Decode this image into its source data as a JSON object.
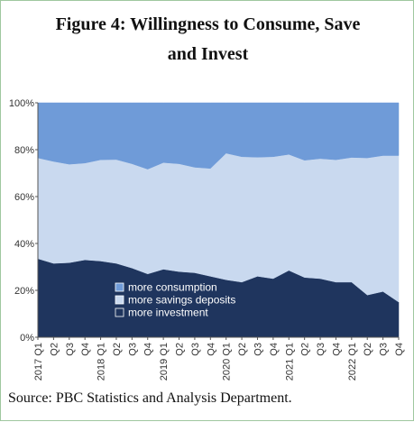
{
  "chart_data": {
    "type": "area",
    "stacked": true,
    "normalized": true,
    "title": "Figure 4: Willingness to Consume, Save\nand Invest",
    "xlabel": "",
    "ylabel": "",
    "ylim": [
      0,
      100
    ],
    "y_ticks": [
      "0%",
      "20%",
      "40%",
      "60%",
      "80%",
      "100%"
    ],
    "categories": [
      "2017 Q1",
      "Q2",
      "Q3",
      "Q4",
      "2018 Q1",
      "Q2",
      "Q3",
      "Q4",
      "2019 Q1",
      "Q2",
      "Q3",
      "Q4",
      "2020 Q1",
      "Q2",
      "Q3",
      "Q4",
      "2021 Q1",
      "Q2",
      "Q3",
      "Q4",
      "2022 Q1",
      "Q2",
      "Q3",
      "Q4"
    ],
    "series": [
      {
        "name": "more investment",
        "color": "#1f355e",
        "values": [
          33.5,
          31.5,
          31.8,
          33.0,
          32.5,
          31.5,
          29.5,
          27.0,
          29.0,
          28.0,
          27.5,
          26.0,
          24.5,
          23.5,
          26.0,
          25.0,
          28.5,
          25.5,
          25.0,
          23.5,
          23.5,
          18.0,
          19.5,
          15.0
        ]
      },
      {
        "name": "more savings deposits",
        "color": "#c9d9ef",
        "values": [
          43.0,
          43.5,
          42.0,
          41.3,
          43.2,
          44.3,
          44.5,
          44.7,
          45.5,
          46.0,
          45.0,
          46.0,
          54.0,
          53.5,
          50.8,
          52.0,
          49.5,
          50.0,
          51.2,
          52.2,
          53.2,
          58.5,
          58.0,
          62.5
        ]
      },
      {
        "name": "more consumption",
        "color": "#6f9bd8",
        "values": [
          23.5,
          25.0,
          26.2,
          25.7,
          24.3,
          24.2,
          26.0,
          28.3,
          25.5,
          26.0,
          27.5,
          28.0,
          21.5,
          23.0,
          23.2,
          23.0,
          22.0,
          24.5,
          23.8,
          24.3,
          23.3,
          23.5,
          22.5,
          22.5
        ]
      }
    ],
    "legend": {
      "placement": "inside-bottom-center",
      "order": [
        "more consumption",
        "more savings deposits",
        "more investment"
      ]
    },
    "grid": false
  },
  "source_text": "Source: PBC Statistics and Analysis Department."
}
